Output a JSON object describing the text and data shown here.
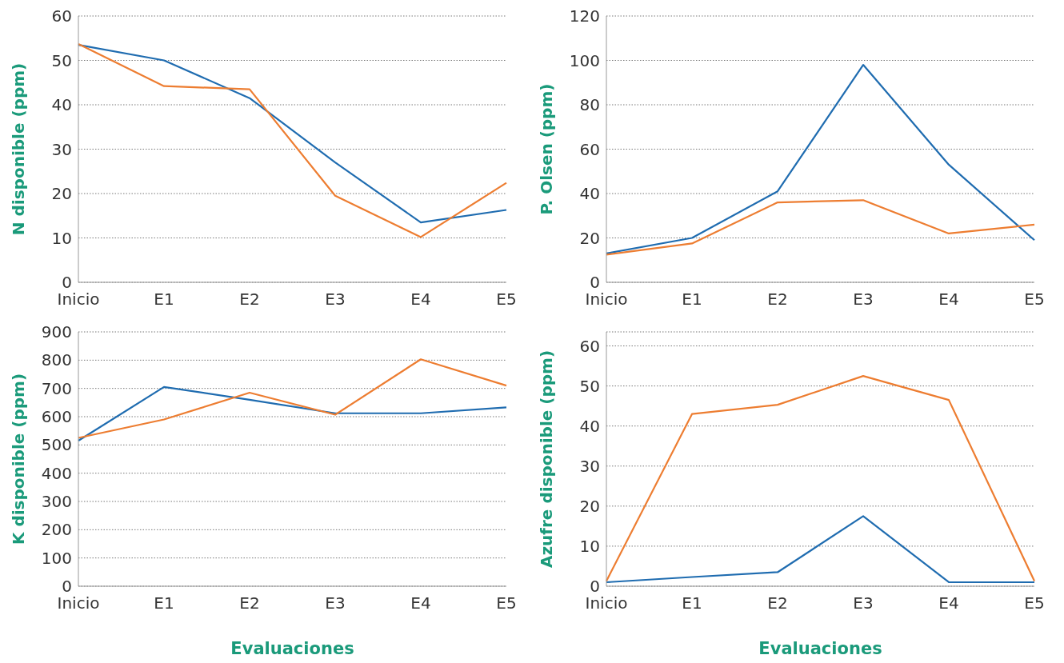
{
  "chart_data": [
    {
      "type": "line",
      "ylabel": "N disponible (ppm)",
      "categories": [
        "Inicio",
        "E1",
        "E2",
        "E3",
        "E4",
        "E5"
      ],
      "ylim": [
        0,
        60
      ],
      "yticks": [
        0,
        10,
        20,
        30,
        40,
        50,
        60
      ],
      "grid": "y",
      "marker": "none",
      "line_style": "solid",
      "series": [
        {
          "color": "#1f6cb0",
          "values": [
            53.5,
            50,
            41.5,
            27,
            13.5,
            16.3
          ]
        },
        {
          "color": "#ed7d31",
          "values": [
            53.7,
            44.2,
            43.5,
            19.5,
            10.2,
            22.4
          ]
        }
      ]
    },
    {
      "type": "line",
      "ylabel": "P. Olsen (ppm)",
      "categories": [
        "Inicio",
        "E1",
        "E2",
        "E3",
        "E4",
        "E5"
      ],
      "ylim": [
        0,
        120
      ],
      "yticks": [
        0,
        20,
        40,
        60,
        80,
        100,
        120
      ],
      "grid": "y",
      "marker": "none",
      "line_style": "solid",
      "series": [
        {
          "color": "#1f6cb0",
          "values": [
            13,
            20,
            41,
            98,
            53,
            19
          ]
        },
        {
          "color": "#ed7d31",
          "values": [
            12.5,
            17.5,
            36,
            37,
            22,
            26
          ]
        }
      ]
    },
    {
      "type": "line",
      "ylabel": "K disponible (ppm)",
      "xlabel": "Evaluaciones",
      "categories": [
        "Inicio",
        "E1",
        "E2",
        "E3",
        "E4",
        "E5"
      ],
      "ylim": [
        0,
        900
      ],
      "yticks": [
        0,
        100,
        200,
        300,
        400,
        500,
        600,
        700,
        800,
        900
      ],
      "grid": "y",
      "marker": "none",
      "line_style": "solid",
      "series": [
        {
          "color": "#1f6cb0",
          "values": [
            515,
            705,
            660,
            612,
            612,
            633
          ]
        },
        {
          "color": "#ed7d31",
          "values": [
            525,
            590,
            685,
            607,
            803,
            710
          ]
        }
      ]
    },
    {
      "type": "line",
      "ylabel": "Azufre disponible (ppm)",
      "xlabel": "Evaluaciones",
      "categories": [
        "Inicio",
        "E1",
        "E2",
        "E3",
        "E4",
        "E5"
      ],
      "ylim": [
        0,
        63.5
      ],
      "yticks": [
        0,
        10,
        20,
        30,
        40,
        50,
        60
      ],
      "grid": "y",
      "marker": "none",
      "line_style": "solid",
      "series": [
        {
          "color": "#1f6cb0",
          "values": [
            1,
            2.3,
            3.5,
            17.5,
            1,
            1
          ]
        },
        {
          "color": "#ed7d31",
          "values": [
            1.3,
            43,
            45.3,
            52.5,
            46.5,
            1.3
          ]
        }
      ]
    }
  ]
}
